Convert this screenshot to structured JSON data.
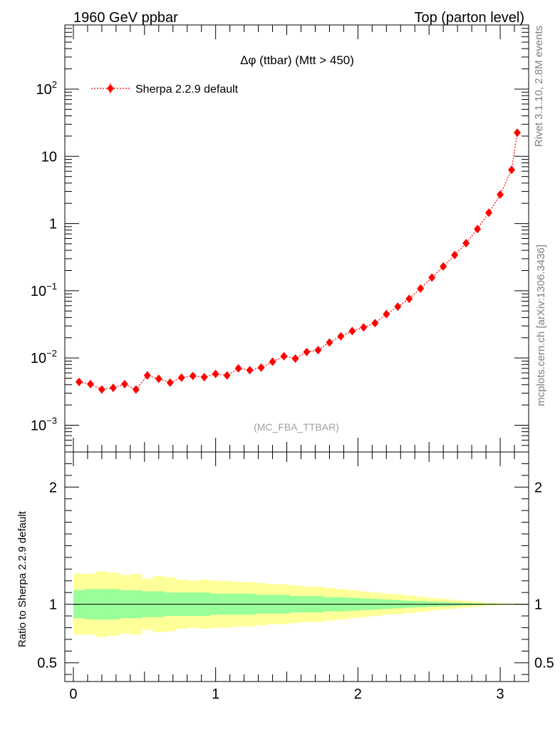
{
  "header": {
    "left": "1960 GeV ppbar",
    "right": "Top (parton level)"
  },
  "side_labels": {
    "rivet": "Rivet 3.1.10,  2.8M events",
    "mcplots": "mcplots.cern.ch [arXiv:1306.3436]"
  },
  "chart_data": [
    {
      "type": "line",
      "panel": "main",
      "title": "Δφ (ttbar) (Mtt > 450)",
      "analysis_tag": "(MC_FBA_TTBAR)",
      "xlim": [
        -0.06,
        3.2
      ],
      "ylim": [
        0.0004,
        900
      ],
      "yscale": "log",
      "grid": false,
      "legend_position": "top-left",
      "color": "#ff0000",
      "y_ticks": [
        {
          "value": 0.001,
          "base": "10",
          "exp": "−3"
        },
        {
          "value": 0.01,
          "base": "10",
          "exp": "−2"
        },
        {
          "value": 0.1,
          "base": "10",
          "exp": "−1"
        },
        {
          "value": 1,
          "base": "1",
          "exp": ""
        },
        {
          "value": 10,
          "base": "10",
          "exp": ""
        },
        {
          "value": 100,
          "base": "10",
          "exp": "2"
        }
      ],
      "series": [
        {
          "name": "Sherpa 2.2.9 default",
          "x": [
            0.04,
            0.12,
            0.2,
            0.28,
            0.36,
            0.44,
            0.52,
            0.6,
            0.68,
            0.76,
            0.84,
            0.92,
            1.0,
            1.08,
            1.16,
            1.24,
            1.32,
            1.4,
            1.48,
            1.56,
            1.64,
            1.72,
            1.8,
            1.88,
            1.96,
            2.04,
            2.12,
            2.2,
            2.28,
            2.36,
            2.44,
            2.52,
            2.6,
            2.68,
            2.76,
            2.84,
            2.92,
            3.0,
            3.08,
            3.12
          ],
          "y": [
            0.0044,
            0.0041,
            0.0034,
            0.0036,
            0.0041,
            0.0034,
            0.0055,
            0.0049,
            0.0043,
            0.0051,
            0.0054,
            0.0052,
            0.0058,
            0.0055,
            0.007,
            0.0066,
            0.0072,
            0.0088,
            0.0106,
            0.0098,
            0.0123,
            0.0131,
            0.017,
            0.021,
            0.0252,
            0.0285,
            0.033,
            0.045,
            0.058,
            0.076,
            0.108,
            0.157,
            0.23,
            0.34,
            0.51,
            0.83,
            1.45,
            2.7,
            6.3,
            22.5
          ],
          "err_rel": [
            0.12,
            0.12,
            0.13,
            0.13,
            0.12,
            0.13,
            0.11,
            0.11,
            0.12,
            0.11,
            0.11,
            0.11,
            0.1,
            0.1,
            0.09,
            0.09,
            0.09,
            0.08,
            0.08,
            0.08,
            0.07,
            0.07,
            0.06,
            0.06,
            0.05,
            0.05,
            0.05,
            0.04,
            0.04,
            0.04,
            0.03,
            0.03,
            0.03,
            0.03,
            0.02,
            0.02,
            0.02,
            0.02,
            0.02,
            0.02
          ]
        }
      ]
    },
    {
      "type": "area",
      "panel": "ratio",
      "ylabel": "Ratio to Sherpa 2.2.9 default",
      "xlim": [
        -0.06,
        3.2
      ],
      "ylim": [
        0.34,
        2.3
      ],
      "reference_line": 1.0,
      "x_ticks": [
        "0",
        "1",
        "2",
        "3"
      ],
      "y_ticks": [
        "0.5",
        "1",
        "2"
      ],
      "grid": false,
      "bin_edges": [
        0,
        0.08,
        0.16,
        0.24,
        0.32,
        0.4,
        0.48,
        0.56,
        0.64,
        0.72,
        0.8,
        0.88,
        0.96,
        1.04,
        1.12,
        1.2,
        1.28,
        1.36,
        1.44,
        1.52,
        1.6,
        1.68,
        1.76,
        1.84,
        1.92,
        2.0,
        2.08,
        2.16,
        2.24,
        2.32,
        2.4,
        2.48,
        2.56,
        2.64,
        2.72,
        2.8,
        2.88,
        2.96,
        3.04,
        3.14
      ],
      "bands": [
        {
          "name": "outer",
          "color": "#ffff99",
          "half_width": [
            0.26,
            0.26,
            0.28,
            0.27,
            0.25,
            0.26,
            0.22,
            0.24,
            0.23,
            0.21,
            0.2,
            0.21,
            0.2,
            0.2,
            0.19,
            0.19,
            0.18,
            0.17,
            0.17,
            0.16,
            0.15,
            0.15,
            0.14,
            0.13,
            0.12,
            0.11,
            0.1,
            0.09,
            0.085,
            0.075,
            0.065,
            0.055,
            0.045,
            0.037,
            0.028,
            0.02,
            0.013,
            0.008,
            0.005
          ]
        },
        {
          "name": "inner",
          "color": "#99ff99",
          "half_width": [
            0.12,
            0.13,
            0.13,
            0.13,
            0.12,
            0.12,
            0.11,
            0.11,
            0.1,
            0.1,
            0.1,
            0.1,
            0.09,
            0.09,
            0.09,
            0.09,
            0.08,
            0.08,
            0.08,
            0.07,
            0.07,
            0.07,
            0.06,
            0.06,
            0.055,
            0.05,
            0.045,
            0.04,
            0.035,
            0.03,
            0.027,
            0.022,
            0.018,
            0.014,
            0.01,
            0.007,
            0.005,
            0.003,
            0.002
          ]
        }
      ]
    }
  ]
}
